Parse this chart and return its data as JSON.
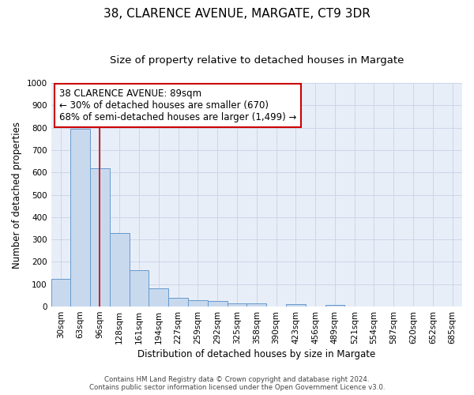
{
  "title": "38, CLARENCE AVENUE, MARGATE, CT9 3DR",
  "subtitle": "Size of property relative to detached houses in Margate",
  "xlabel": "Distribution of detached houses by size in Margate",
  "ylabel": "Number of detached properties",
  "bar_labels": [
    "30sqm",
    "63sqm",
    "96sqm",
    "128sqm",
    "161sqm",
    "194sqm",
    "227sqm",
    "259sqm",
    "292sqm",
    "325sqm",
    "358sqm",
    "390sqm",
    "423sqm",
    "456sqm",
    "489sqm",
    "521sqm",
    "554sqm",
    "587sqm",
    "620sqm",
    "652sqm",
    "685sqm"
  ],
  "bar_values": [
    125,
    795,
    620,
    328,
    162,
    82,
    40,
    30,
    25,
    15,
    15,
    0,
    10,
    0,
    8,
    0,
    0,
    0,
    0,
    0,
    0
  ],
  "bar_color": "#c8d9ee",
  "bar_edge_color": "#6699cc",
  "grid_color": "#ccd6e8",
  "background_color": "#e8eef8",
  "vline_x": 1.97,
  "vline_color": "#cc0000",
  "annotation_text": "38 CLARENCE AVENUE: 89sqm\n← 30% of detached houses are smaller (670)\n68% of semi-detached houses are larger (1,499) →",
  "annotation_box_color": "#cc0000",
  "ylim": [
    0,
    1000
  ],
  "yticks": [
    0,
    100,
    200,
    300,
    400,
    500,
    600,
    700,
    800,
    900,
    1000
  ],
  "footer_line1": "Contains HM Land Registry data © Crown copyright and database right 2024.",
  "footer_line2": "Contains public sector information licensed under the Open Government Licence v3.0.",
  "title_fontsize": 11,
  "subtitle_fontsize": 9.5,
  "tick_fontsize": 7.5,
  "ylabel_fontsize": 8.5,
  "xlabel_fontsize": 8.5,
  "annot_fontsize": 8.5
}
